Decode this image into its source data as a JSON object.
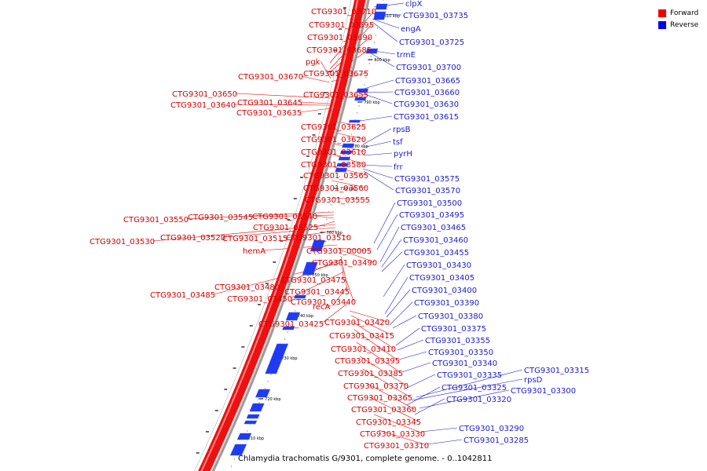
{
  "caption": "Chlamydia trachomatis G/9301, complete genome. - 0..1042811",
  "legend": {
    "forward": {
      "label": "Forward",
      "color": "#ee0000"
    },
    "reverse": {
      "label": "Reverse",
      "color": "#0000ee"
    }
  },
  "scale_ticks": [
    "810 kbp",
    "800 kbp",
    "790 kbp",
    "780 kbp",
    "770 kbp",
    "760 kbp",
    "750 kbp",
    "740 kbp",
    "730 kbp",
    "720 kbp",
    "710 kbp"
  ],
  "forward_genes": [
    {
      "name": "CTG9301_03710"
    },
    {
      "name": "CTG9301_03695"
    },
    {
      "name": "CTG9301_03690"
    },
    {
      "name": "CTG9301_03685"
    },
    {
      "name": "pgk"
    },
    {
      "name": "CTG9301_03670"
    },
    {
      "name": "CTG9301_03675"
    },
    {
      "name": "CTG9301_03650"
    },
    {
      "name": "CTG9301_03655"
    },
    {
      "name": "CTG9301_03645"
    },
    {
      "name": "CTG9301_03640"
    },
    {
      "name": "CTG9301_03635"
    },
    {
      "name": "CTG9301_03625"
    },
    {
      "name": "CTG9301_03620"
    },
    {
      "name": "CTG9301_03610"
    },
    {
      "name": "CTG9301_03580"
    },
    {
      "name": "CTG9301_03565"
    },
    {
      "name": "CTG9301_03560"
    },
    {
      "name": "CTG9301_03555"
    },
    {
      "name": "CTG9301_03550"
    },
    {
      "name": "CTG9301_03545"
    },
    {
      "name": "CTG9301_03540"
    },
    {
      "name": "CTG9301_03525"
    },
    {
      "name": "CTG9301_03530"
    },
    {
      "name": "CTG9301_03520"
    },
    {
      "name": "CTG9301_03515"
    },
    {
      "name": "CTG9301_03510"
    },
    {
      "name": "hemA"
    },
    {
      "name": "CTG9301_00005"
    },
    {
      "name": "CTG9301_03490"
    },
    {
      "name": "CTG9301_03475"
    },
    {
      "name": "CTG9301_03480"
    },
    {
      "name": "CTG9301_03485"
    },
    {
      "name": "CTG9301_03445"
    },
    {
      "name": "CTG9301_03450"
    },
    {
      "name": "CTG9301_03440"
    },
    {
      "name": "recA"
    },
    {
      "name": "CTG9301_03425"
    },
    {
      "name": "CTG9301_03420"
    },
    {
      "name": "CTG9301_03415"
    },
    {
      "name": "CTG9301_03410"
    },
    {
      "name": "CTG9301_03395"
    },
    {
      "name": "CTG9301_03385"
    },
    {
      "name": "CTG9301_03370"
    },
    {
      "name": "CTG9301_03365"
    },
    {
      "name": "CTG9301_03360"
    },
    {
      "name": "CTG9301_03345"
    },
    {
      "name": "CTG9301_03330"
    },
    {
      "name": "CTG9301_03310"
    }
  ],
  "reverse_genes": [
    {
      "name": "clpX"
    },
    {
      "name": "CTG9301_03735"
    },
    {
      "name": "engA"
    },
    {
      "name": "CTG9301_03725"
    },
    {
      "name": "trmE"
    },
    {
      "name": "CTG9301_03700"
    },
    {
      "name": "CTG9301_03665"
    },
    {
      "name": "CTG9301_03660"
    },
    {
      "name": "CTG9301_03630"
    },
    {
      "name": "CTG9301_03615"
    },
    {
      "name": "rpsB"
    },
    {
      "name": "tsf"
    },
    {
      "name": "pyrH"
    },
    {
      "name": "frr"
    },
    {
      "name": "CTG9301_03575"
    },
    {
      "name": "CTG9301_03570"
    },
    {
      "name": "CTG9301_03500"
    },
    {
      "name": "CTG9301_03495"
    },
    {
      "name": "CTG9301_03465"
    },
    {
      "name": "CTG9301_03460"
    },
    {
      "name": "CTG9301_03455"
    },
    {
      "name": "CTG9301_03430"
    },
    {
      "name": "CTG9301_03405"
    },
    {
      "name": "CTG9301_03400"
    },
    {
      "name": "CTG9301_03390"
    },
    {
      "name": "CTG9301_03380"
    },
    {
      "name": "CTG9301_03375"
    },
    {
      "name": "CTG9301_03355"
    },
    {
      "name": "CTG9301_03350"
    },
    {
      "name": "CTG9301_03340"
    },
    {
      "name": "CTG9301_03335"
    },
    {
      "name": "CTG9301_03315"
    },
    {
      "name": "rpsD"
    },
    {
      "name": "CTG9301_03325"
    },
    {
      "name": "CTG9301_03300"
    },
    {
      "name": "CTG9301_03320"
    },
    {
      "name": "CTG9301_03290"
    },
    {
      "name": "CTG9301_03285"
    }
  ]
}
